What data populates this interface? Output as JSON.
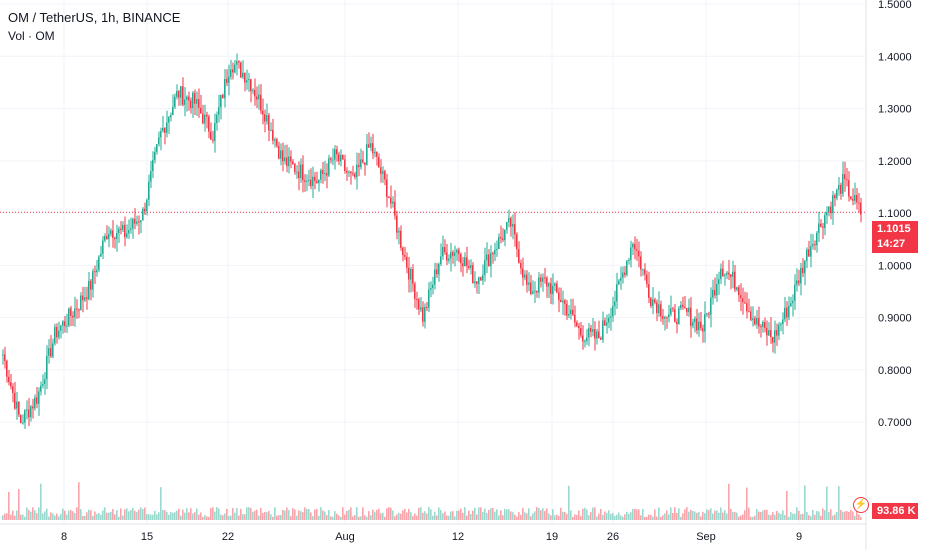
{
  "header": {
    "symbol_title": "OM / TetherUS, 1h, BINANCE",
    "volume_label": "Vol · OM"
  },
  "price_tag": {
    "price": "1.1015",
    "countdown": "14:27"
  },
  "volume_tag": "93.86 K",
  "colors": {
    "up": "#22ab94",
    "down": "#f23645",
    "grid": "#f0f3fa",
    "text": "#131722"
  },
  "icons": [
    "lightning-alert-icon"
  ],
  "chart_data": {
    "type": "candlestick",
    "title": "OM / TetherUS, 1h, BINANCE",
    "xlabel": "",
    "ylabel": "",
    "ylim": [
      0.62,
      1.5
    ],
    "y_ticks": [
      "1.5000",
      "1.4000",
      "1.3000",
      "1.2000",
      "1.1000",
      "1.0000",
      "0.9000",
      "0.8000",
      "0.7000"
    ],
    "x_ticks": [
      "8",
      "15",
      "22",
      "Aug",
      "12",
      "19",
      "26",
      "Sep",
      "9"
    ],
    "last_price": 1.1015,
    "grid": true,
    "series": [
      {
        "name": "OM / TetherUS",
        "values": [
          {
            "date": "Jul 4",
            "value": 0.83
          },
          {
            "date": "Jul 5",
            "value": 0.7
          },
          {
            "date": "Jul 6",
            "value": 0.75
          },
          {
            "date": "Jul 7",
            "value": 0.87
          },
          {
            "date": "Jul 8",
            "value": 0.91
          },
          {
            "date": "Jul 10",
            "value": 0.96
          },
          {
            "date": "Jul 11",
            "value": 1.07
          },
          {
            "date": "Jul 13",
            "value": 1.06
          },
          {
            "date": "Jul 14",
            "value": 1.1
          },
          {
            "date": "Jul 15",
            "value": 1.25
          },
          {
            "date": "Jul 16",
            "value": 1.33
          },
          {
            "date": "Jul 17",
            "value": 1.31
          },
          {
            "date": "Jul 19",
            "value": 1.25
          },
          {
            "date": "Jul 20",
            "value": 1.39
          },
          {
            "date": "Jul 22",
            "value": 1.36
          },
          {
            "date": "Jul 23",
            "value": 1.29
          },
          {
            "date": "Jul 25",
            "value": 1.2
          },
          {
            "date": "Jul 26",
            "value": 1.18
          },
          {
            "date": "Jul 28",
            "value": 1.16
          },
          {
            "date": "Jul 29",
            "value": 1.21
          },
          {
            "date": "Jul 30",
            "value": 1.16
          },
          {
            "date": "Jul 31",
            "value": 1.23
          },
          {
            "date": "Aug 1",
            "value": 1.14
          },
          {
            "date": "Aug 2",
            "value": 1.01
          },
          {
            "date": "Aug 4",
            "value": 0.9
          },
          {
            "date": "Aug 5",
            "value": 1.02
          },
          {
            "date": "Aug 6",
            "value": 1.03
          },
          {
            "date": "Aug 8",
            "value": 0.97
          },
          {
            "date": "Aug 10",
            "value": 1.03
          },
          {
            "date": "Aug 11",
            "value": 1.08
          },
          {
            "date": "Aug 13",
            "value": 0.95
          },
          {
            "date": "Aug 15",
            "value": 0.97
          },
          {
            "date": "Aug 17",
            "value": 0.93
          },
          {
            "date": "Aug 19",
            "value": 0.87
          },
          {
            "date": "Aug 21",
            "value": 0.86
          },
          {
            "date": "Aug 23",
            "value": 0.94
          },
          {
            "date": "Aug 25",
            "value": 1.05
          },
          {
            "date": "Aug 27",
            "value": 0.94
          },
          {
            "date": "Aug 29",
            "value": 0.9
          },
          {
            "date": "Aug 31",
            "value": 0.91
          },
          {
            "date": "Sep 2",
            "value": 0.88
          },
          {
            "date": "Sep 3",
            "value": 1.0
          },
          {
            "date": "Sep 4",
            "value": 0.96
          },
          {
            "date": "Sep 6",
            "value": 0.89
          },
          {
            "date": "Sep 8",
            "value": 0.86
          },
          {
            "date": "Sep 9",
            "value": 0.93
          },
          {
            "date": "Sep 10",
            "value": 1.03
          },
          {
            "date": "Sep 11",
            "value": 1.1
          },
          {
            "date": "Sep 12",
            "value": 1.16
          },
          {
            "date": "Sep 13",
            "value": 1.1
          }
        ]
      }
    ]
  }
}
